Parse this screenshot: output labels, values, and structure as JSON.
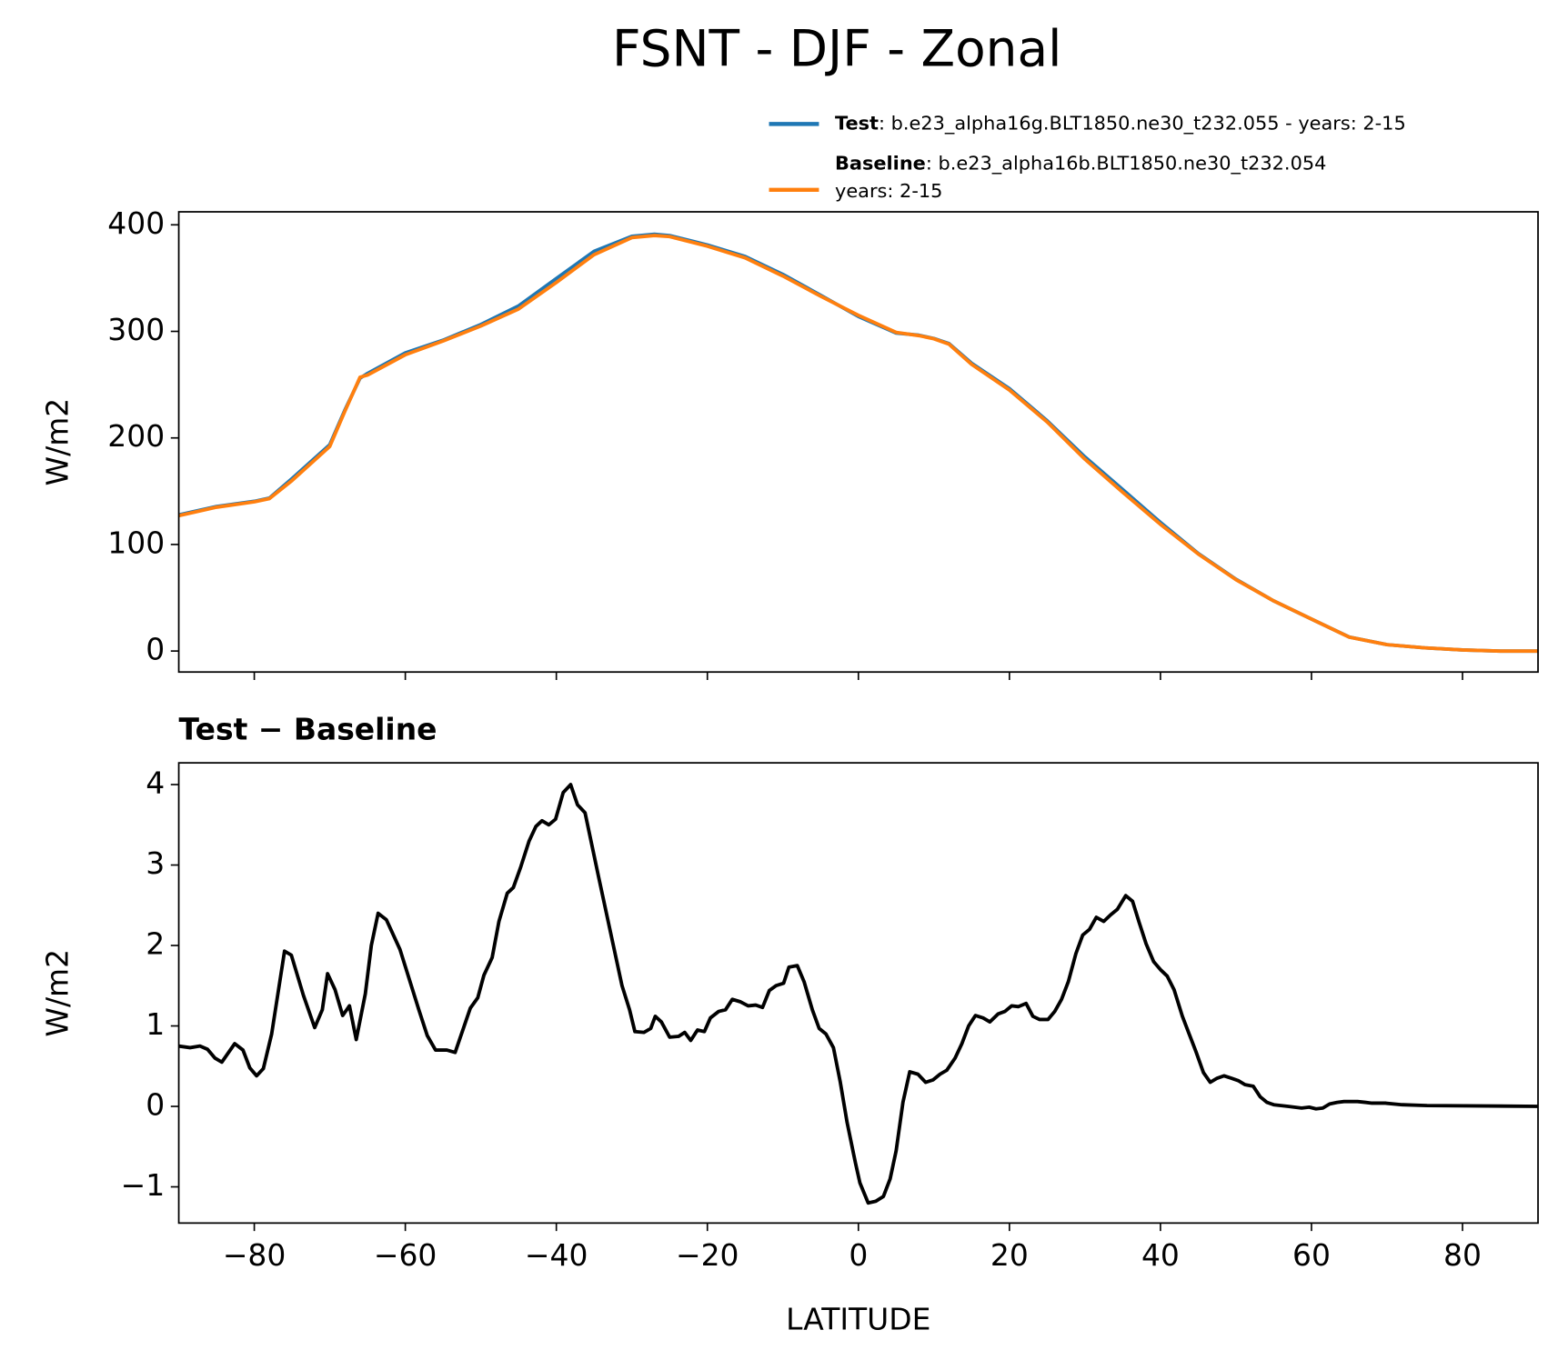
{
  "chart_data": [
    {
      "type": "line",
      "title": "FSNT - DJF - Zonal",
      "ylabel": "W/m2",
      "x": [
        -90,
        -85,
        -80,
        -78,
        -75,
        -70,
        -68,
        -66,
        -65,
        -60,
        -55,
        -50,
        -45,
        -40,
        -35,
        -30,
        -27,
        -25,
        -20,
        -15,
        -10,
        -5,
        0,
        5,
        8,
        10,
        12,
        15,
        20,
        25,
        30,
        35,
        40,
        45,
        50,
        55,
        60,
        65,
        70,
        75,
        80,
        85,
        90
      ],
      "series": [
        {
          "name": "Test",
          "detail": [
            ": b.e23_alpha16g.BLT1850.ne30_t232.055 - years: 2-15"
          ],
          "color": "#1f77b4",
          "values": [
            127.8,
            135.6,
            140.5,
            143.5,
            161.9,
            193.6,
            226.1,
            256.1,
            260.5,
            279.8,
            291.7,
            306.4,
            323.9,
            349.6,
            375.2,
            389.2,
            391.1,
            389.9,
            381.1,
            370.3,
            353.5,
            333.9,
            314,
            298.5,
            296.4,
            293.3,
            288.5,
            270.1,
            246.3,
            216.1,
            182.2,
            151.6,
            120.7,
            91.5,
            67.3,
            47,
            30,
            13.1,
            6,
            3,
            1,
            0,
            0
          ]
        },
        {
          "name": "Baseline",
          "detail": [
            ": b.e23_alpha16b.BLT1850.ne30_t232.054",
            "years: 2-15"
          ],
          "color": "#ff7f0e",
          "values": [
            127,
            135,
            140,
            143,
            160,
            192,
            225,
            257,
            259,
            278,
            291,
            305,
            321,
            346,
            372,
            388,
            390,
            389,
            380,
            369,
            352,
            333,
            315,
            299,
            296,
            293,
            288,
            269,
            245,
            215,
            180,
            149,
            119,
            91,
            67,
            47,
            30,
            13,
            6,
            3,
            1,
            0,
            0
          ]
        }
      ],
      "xlim": [
        -90,
        90
      ],
      "xticks": [
        -80,
        -60,
        -40,
        -20,
        0,
        20,
        40,
        60,
        80
      ],
      "ylim": [
        -19.7,
        412.2
      ],
      "yticks": [
        0,
        100,
        200,
        300,
        400
      ],
      "legend": "upper right"
    },
    {
      "type": "line",
      "title": "Test − Baseline",
      "xlabel": "LATITUDE",
      "ylabel": "W/m2",
      "x": [
        -90,
        -88.5,
        -87.2,
        -86.2,
        -85.2,
        -84.3,
        -82.6,
        -81.5,
        -80.6,
        -79.7,
        -78.8,
        -77.7,
        -76,
        -75.1,
        -73.5,
        -72,
        -71,
        -70.3,
        -69.3,
        -68.3,
        -67.4,
        -66.5,
        -65.3,
        -64.5,
        -63.6,
        -62.5,
        -60.7,
        -58.2,
        -57.1,
        -56,
        -54.5,
        -53.4,
        -51.4,
        -50.4,
        -49.6,
        -48.5,
        -47.6,
        -46.5,
        -45.7,
        -44.7,
        -43.6,
        -42.7,
        -41.9,
        -41,
        -40.1,
        -39.1,
        -38.1,
        -37.2,
        -36.2,
        -34.4,
        -31.3,
        -30.3,
        -29.6,
        -28.4,
        -27.5,
        -26.9,
        -26.1,
        -25,
        -23.8,
        -23,
        -22.2,
        -21.3,
        -20.4,
        -19.6,
        -18.5,
        -17.6,
        -16.7,
        -15.6,
        -14.6,
        -13.6,
        -12.7,
        -11.8,
        -10.9,
        -9.9,
        -9.2,
        -8.1,
        -7.2,
        -6.1,
        -5.2,
        -4.3,
        -3.3,
        -2.4,
        -1.5,
        -0.4,
        0.2,
        1.3,
        2.3,
        3.3,
        4.2,
        5,
        5.9,
        6.8,
        7.9,
        8.9,
        9.9,
        10.8,
        11.7,
        12.8,
        13.7,
        14.6,
        15.5,
        16.5,
        17.4,
        18.5,
        19.4,
        20.3,
        21.2,
        22.2,
        23.1,
        24,
        25.1,
        26,
        26.9,
        27.8,
        28.8,
        29.7,
        30.6,
        31.5,
        32.5,
        33.4,
        34.3,
        35.4,
        36.3,
        37.2,
        38.1,
        39.1,
        40,
        40.9,
        41.8,
        42.9,
        43.8,
        44.7,
        45.7,
        46.6,
        47.5,
        48.4,
        49.4,
        50.3,
        51.2,
        52.3,
        53.2,
        54.1,
        55,
        56.9,
        58.7,
        59.7,
        60.6,
        61.5,
        62.4,
        63.4,
        64.3,
        66.1,
        67.1,
        68,
        69.8,
        72,
        75.3,
        90
      ],
      "series": [
        {
          "color": "#000000",
          "values": [
            0.75,
            0.73,
            0.75,
            0.71,
            0.6,
            0.55,
            0.78,
            0.7,
            0.48,
            0.38,
            0.47,
            0.9,
            1.93,
            1.88,
            1.38,
            0.98,
            1.2,
            1.65,
            1.45,
            1.13,
            1.25,
            0.83,
            1.4,
            2.0,
            2.4,
            2.32,
            1.95,
            1.2,
            0.88,
            0.7,
            0.7,
            0.67,
            1.22,
            1.35,
            1.63,
            1.85,
            2.3,
            2.65,
            2.72,
            2.98,
            3.3,
            3.48,
            3.55,
            3.5,
            3.57,
            3.9,
            4.0,
            3.75,
            3.65,
            2.85,
            1.5,
            1.2,
            0.93,
            0.92,
            0.97,
            1.12,
            1.05,
            0.86,
            0.87,
            0.92,
            0.82,
            0.95,
            0.93,
            1.1,
            1.18,
            1.2,
            1.33,
            1.3,
            1.25,
            1.26,
            1.23,
            1.44,
            1.5,
            1.53,
            1.73,
            1.75,
            1.55,
            1.2,
            0.97,
            0.9,
            0.73,
            0.3,
            -0.2,
            -0.7,
            -0.95,
            -1.2,
            -1.18,
            -1.12,
            -0.9,
            -0.55,
            0.05,
            0.43,
            0.4,
            0.3,
            0.33,
            0.4,
            0.45,
            0.6,
            0.78,
            1.0,
            1.13,
            1.1,
            1.05,
            1.15,
            1.18,
            1.25,
            1.24,
            1.28,
            1.12,
            1.08,
            1.08,
            1.18,
            1.33,
            1.55,
            1.9,
            2.13,
            2.2,
            2.35,
            2.3,
            2.38,
            2.45,
            2.62,
            2.55,
            2.28,
            2.02,
            1.8,
            1.7,
            1.62,
            1.45,
            1.12,
            0.9,
            0.68,
            0.42,
            0.3,
            0.35,
            0.38,
            0.35,
            0.32,
            0.27,
            0.25,
            0.12,
            0.05,
            0.02,
            0.0,
            -0.02,
            -0.01,
            -0.03,
            -0.02,
            0.03,
            0.05,
            0.06,
            0.06,
            0.05,
            0.04,
            0.04,
            0.02,
            0.01,
            0.0
          ]
        }
      ],
      "xlim": [
        -90,
        90
      ],
      "xticks": [
        {
          "value": -80,
          "label": "−80"
        },
        {
          "value": -60,
          "label": "−60"
        },
        {
          "value": -40,
          "label": "−40"
        },
        {
          "value": -20,
          "label": "−20"
        },
        0,
        20,
        40,
        60,
        80
      ],
      "ylim": [
        -1.45,
        4.27
      ],
      "yticks": [
        {
          "value": -1,
          "label": "−1"
        },
        0,
        1,
        2,
        3,
        4
      ]
    }
  ]
}
